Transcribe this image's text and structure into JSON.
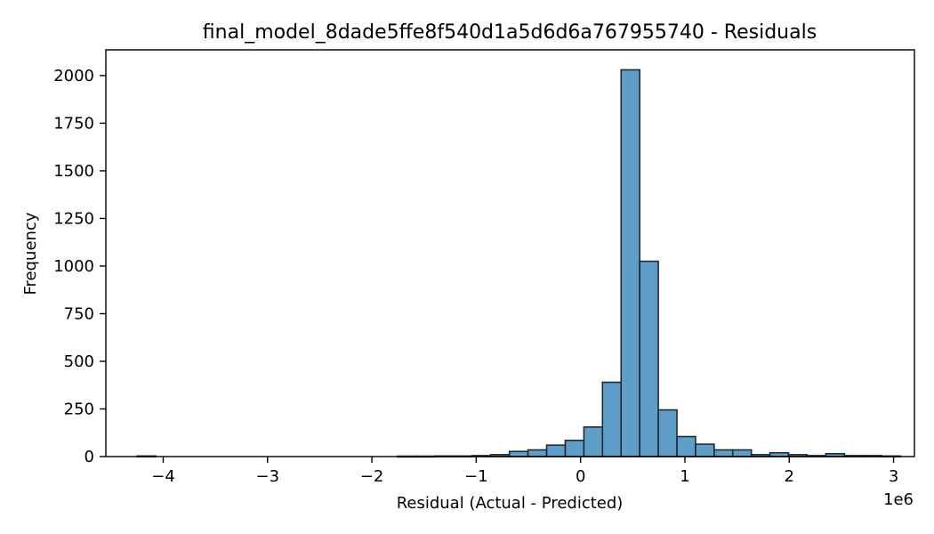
{
  "chart_data": {
    "type": "bar",
    "title": "final_model_8dade5ffe8f540d1a5d6d6a767955740 - Residuals",
    "xlabel": "Residual (Actual - Predicted)",
    "ylabel": "Frequency",
    "x_offset_label": "1e6",
    "xlim": [
      -4.55,
      3.2
    ],
    "ylim": [
      0,
      2135
    ],
    "grid": false,
    "x_ticks": [
      {
        "value": -4,
        "label": "−4"
      },
      {
        "value": -3,
        "label": "−3"
      },
      {
        "value": -2,
        "label": "−2"
      },
      {
        "value": -1,
        "label": "−1"
      },
      {
        "value": 0,
        "label": "0"
      },
      {
        "value": 1,
        "label": "1"
      },
      {
        "value": 2,
        "label": "2"
      },
      {
        "value": 3,
        "label": "3"
      }
    ],
    "y_ticks": [
      {
        "value": 0,
        "label": "0"
      },
      {
        "value": 250,
        "label": "250"
      },
      {
        "value": 500,
        "label": "500"
      },
      {
        "value": 750,
        "label": "750"
      },
      {
        "value": 1000,
        "label": "1000"
      },
      {
        "value": 1250,
        "label": "1250"
      },
      {
        "value": 1500,
        "label": "1500"
      },
      {
        "value": 1750,
        "label": "1750"
      },
      {
        "value": 2000,
        "label": "2000"
      }
    ],
    "bin_start": -4.25,
    "bin_width": 0.1784,
    "counts": [
      3,
      0,
      0,
      0,
      0,
      0,
      0,
      0,
      0,
      0,
      0,
      0,
      0,
      0,
      2,
      2,
      3,
      3,
      5,
      10,
      27,
      35,
      60,
      85,
      155,
      390,
      2030,
      1025,
      245,
      105,
      65,
      35,
      35,
      10,
      20,
      10,
      5,
      15,
      5,
      5,
      3,
      0,
      0,
      3,
      2
    ]
  }
}
